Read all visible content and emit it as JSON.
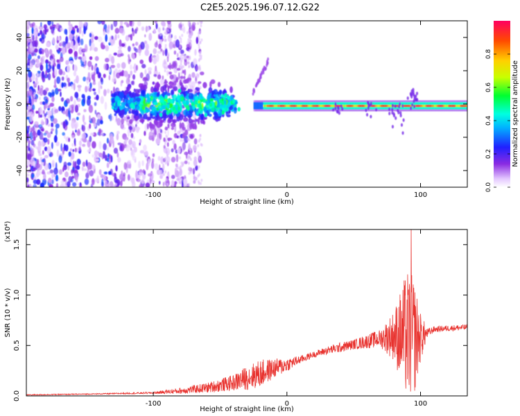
{
  "title": "C2E5.2025.196.07.12.G22",
  "chart_data": [
    {
      "type": "heatmap",
      "xlabel": "Height of straight line (km)",
      "ylabel": "Frequency (Hz)",
      "xlim": [
        -195,
        135
      ],
      "ylim": [
        -50,
        50
      ],
      "xticks": [
        {
          "v": -100,
          "label": "-100"
        },
        {
          "v": 0,
          "label": "0"
        },
        {
          "v": 100,
          "label": "100"
        }
      ],
      "yticks": [
        {
          "v": -40,
          "label": "-40"
        },
        {
          "v": -20,
          "label": "-20"
        },
        {
          "v": 0,
          "label": "0"
        },
        {
          "v": 20,
          "label": "20"
        },
        {
          "v": 40,
          "label": "40"
        }
      ],
      "colorbar": {
        "label": "Normalized spectral amplitude",
        "range": [
          0,
          1
        ],
        "ticks": [
          {
            "v": 0.0,
            "label": "0.0"
          },
          {
            "v": 0.2,
            "label": "0.2"
          },
          {
            "v": 0.4,
            "label": "0.4"
          },
          {
            "v": 0.6,
            "label": "0.6"
          },
          {
            "v": 0.8,
            "label": "0.8"
          }
        ],
        "colormap": "rainbow (violet-blue-cyan-green-yellow-red)"
      },
      "bands": [
        {
          "name": "scattered noise",
          "x": [
            -195,
            -65
          ],
          "y": [
            -50,
            50
          ],
          "amplitude": [
            0.05,
            0.35
          ]
        },
        {
          "name": "central blob",
          "x": [
            -130,
            -40
          ],
          "y": [
            -12,
            12
          ],
          "amplitude": [
            0.2,
            0.6
          ]
        },
        {
          "name": "tone",
          "x": [
            -20,
            135
          ],
          "y": [
            -3,
            1
          ],
          "amplitude": [
            0.5,
            0.9
          ]
        },
        {
          "name": "rising streak",
          "x": [
            -22,
            -12
          ],
          "y": [
            8,
            26
          ],
          "amplitude": [
            0.2,
            0.3
          ]
        }
      ]
    },
    {
      "type": "line",
      "xlabel": "Height of straight line (km)",
      "ylabel": "SNR (10 * v/v)",
      "y_scale_label": "(x10⁴)",
      "xlim": [
        -195,
        135
      ],
      "ylim": [
        0,
        1.65
      ],
      "xticks": [
        {
          "v": -100,
          "label": "-100"
        },
        {
          "v": 0,
          "label": "0"
        },
        {
          "v": 100,
          "label": "100"
        }
      ],
      "yticks": [
        {
          "v": 0.0,
          "label": "0.0"
        },
        {
          "v": 0.5,
          "label": "0.5"
        },
        {
          "v": 1.0,
          "label": "1.0"
        },
        {
          "v": 1.5,
          "label": "1.5"
        }
      ],
      "color": "#e8322e",
      "envelope": {
        "x": [
          -195,
          -140,
          -100,
          -80,
          -60,
          -40,
          -30,
          -20,
          -10,
          0,
          10,
          20,
          30,
          40,
          50,
          60,
          70,
          80,
          85,
          90,
          95,
          100,
          105,
          110,
          120,
          135
        ],
        "mean": [
          0.01,
          0.02,
          0.03,
          0.05,
          0.08,
          0.13,
          0.18,
          0.22,
          0.27,
          0.31,
          0.36,
          0.41,
          0.45,
          0.48,
          0.51,
          0.54,
          0.57,
          0.6,
          0.6,
          0.6,
          0.58,
          0.58,
          0.62,
          0.66,
          0.67,
          0.68
        ],
        "spread": [
          0.005,
          0.005,
          0.01,
          0.03,
          0.05,
          0.08,
          0.12,
          0.14,
          0.1,
          0.07,
          0.04,
          0.03,
          0.04,
          0.05,
          0.05,
          0.07,
          0.09,
          0.25,
          0.45,
          0.65,
          0.6,
          0.25,
          0.05,
          0.03,
          0.03,
          0.03
        ]
      },
      "peak": {
        "x": 93,
        "y": 1.65
      }
    }
  ]
}
